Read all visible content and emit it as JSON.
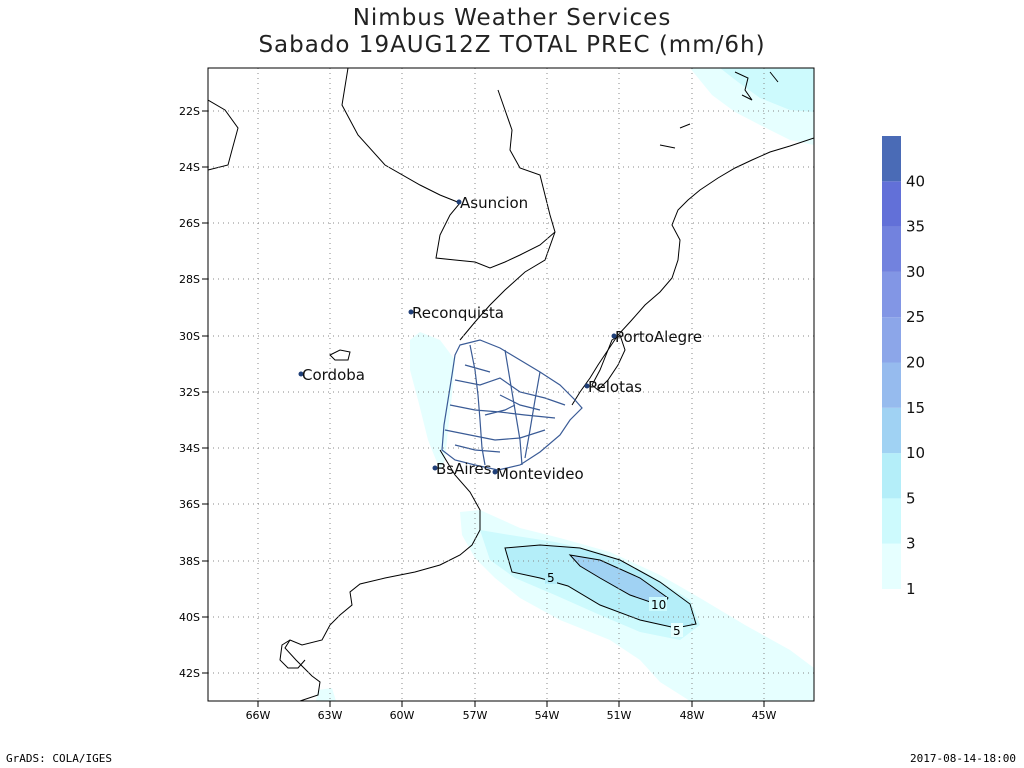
{
  "header": {
    "title": "Nimbus Weather Services",
    "subtitle": "Sabado 19AUG12Z TOTAL PREC (mm/6h)"
  },
  "map": {
    "lat_ticks": [
      "22S",
      "24S",
      "26S",
      "28S",
      "30S",
      "32S",
      "34S",
      "36S",
      "38S",
      "40S",
      "42S"
    ],
    "lon_ticks": [
      "66W",
      "63W",
      "60W",
      "57W",
      "54W",
      "51W",
      "48W",
      "45W"
    ],
    "cities": [
      {
        "name": "Asuncion"
      },
      {
        "name": "Reconquista"
      },
      {
        "name": "PortoAlegre"
      },
      {
        "name": "Cordoba"
      },
      {
        "name": "Pelotas"
      },
      {
        "name": "BsAires"
      },
      {
        "name": "Montevideo"
      }
    ],
    "contour_labels": [
      "5",
      "10",
      "5"
    ]
  },
  "legend": {
    "levels": [
      "1",
      "3",
      "5",
      "10",
      "15",
      "20",
      "25",
      "30",
      "35",
      "40"
    ],
    "colors": [
      "#e6ffff",
      "#cdfafd",
      "#b4eef9",
      "#a0d2f3",
      "#96bbee",
      "#8ca6e9",
      "#8296e5",
      "#7282de",
      "#6270d8",
      "#4a6bb6"
    ]
  },
  "footer": {
    "left": "GrADS: COLA/IGES",
    "right": "2017-08-14-18:00"
  },
  "colors": {
    "city_marker": "#1f3f78",
    "uruguay_rivers": "#3a5b96",
    "coastline": "#000000",
    "grid": "#888888"
  }
}
